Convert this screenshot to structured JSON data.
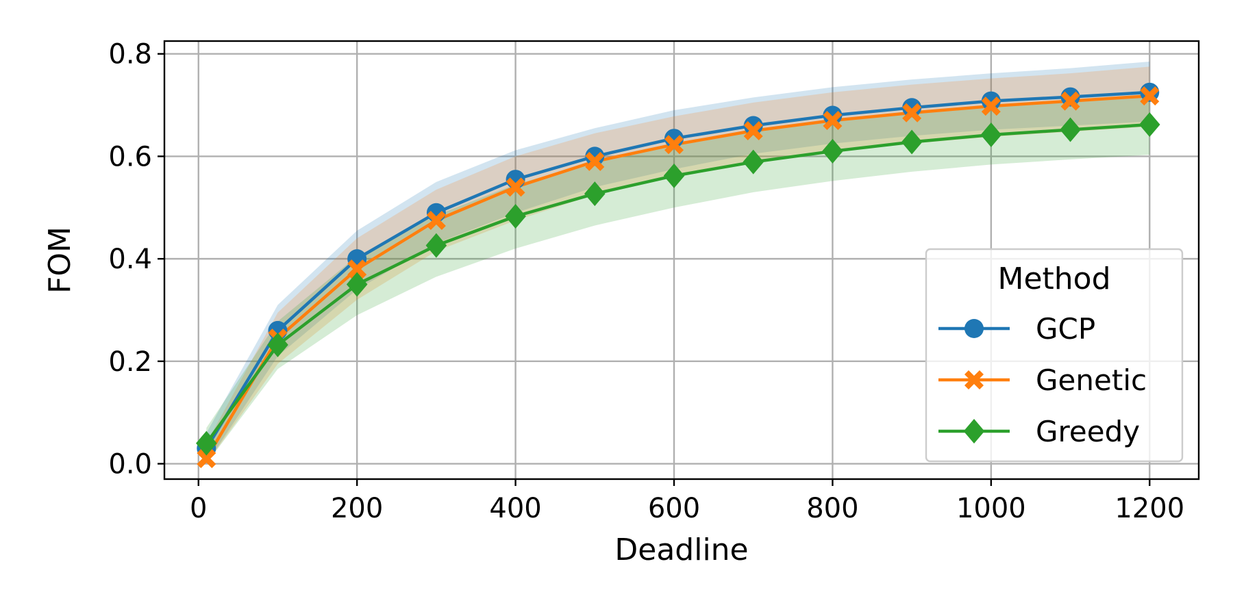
{
  "chart_data": {
    "type": "line",
    "xlabel": "Deadline",
    "ylabel": "FOM",
    "xlim": [
      -43,
      1262
    ],
    "ylim": [
      -0.03,
      0.825
    ],
    "xticks": [
      0,
      200,
      400,
      600,
      800,
      1000,
      1200
    ],
    "xtick_labels": [
      "0",
      "200",
      "400",
      "600",
      "800",
      "1000",
      "1200"
    ],
    "yticks": [
      0.0,
      0.2,
      0.4,
      0.6,
      0.8
    ],
    "ytick_labels": [
      "0.0",
      "0.2",
      "0.4",
      "0.6",
      "0.8"
    ],
    "grid": true,
    "legend": {
      "title": "Method",
      "placement": "lower-right"
    },
    "x": [
      10,
      100,
      200,
      300,
      400,
      500,
      600,
      700,
      800,
      900,
      1000,
      1100,
      1200
    ],
    "series": [
      {
        "name": "GCP",
        "color": "#1f77b4",
        "marker": "circle",
        "values": [
          0.03,
          0.26,
          0.4,
          0.49,
          0.555,
          0.6,
          0.635,
          0.66,
          0.68,
          0.695,
          0.708,
          0.716,
          0.725
        ],
        "band_lower": [
          0.0,
          0.21,
          0.34,
          0.43,
          0.49,
          0.54,
          0.575,
          0.605,
          0.625,
          0.64,
          0.652,
          0.66,
          0.668
        ],
        "band_upper": [
          0.06,
          0.31,
          0.455,
          0.55,
          0.612,
          0.655,
          0.69,
          0.715,
          0.735,
          0.75,
          0.762,
          0.772,
          0.785
        ]
      },
      {
        "name": "Genetic",
        "color": "#ff7f0e",
        "marker": "x",
        "values": [
          0.01,
          0.245,
          0.38,
          0.475,
          0.54,
          0.59,
          0.623,
          0.65,
          0.67,
          0.685,
          0.698,
          0.708,
          0.718
        ],
        "band_lower": [
          0.0,
          0.195,
          0.32,
          0.415,
          0.475,
          0.525,
          0.56,
          0.59,
          0.61,
          0.625,
          0.638,
          0.648,
          0.658
        ],
        "band_upper": [
          0.04,
          0.295,
          0.44,
          0.535,
          0.6,
          0.645,
          0.678,
          0.705,
          0.725,
          0.74,
          0.752,
          0.762,
          0.775
        ]
      },
      {
        "name": "Greedy",
        "color": "#2ca02c",
        "marker": "diamond",
        "values": [
          0.04,
          0.232,
          0.35,
          0.426,
          0.483,
          0.527,
          0.562,
          0.589,
          0.61,
          0.628,
          0.642,
          0.652,
          0.662
        ],
        "band_lower": [
          0.0,
          0.185,
          0.29,
          0.365,
          0.42,
          0.465,
          0.5,
          0.53,
          0.552,
          0.57,
          0.584,
          0.594,
          0.603
        ],
        "band_upper": [
          0.07,
          0.278,
          0.405,
          0.485,
          0.545,
          0.59,
          0.625,
          0.652,
          0.67,
          0.686,
          0.7,
          0.71,
          0.72
        ]
      }
    ]
  }
}
